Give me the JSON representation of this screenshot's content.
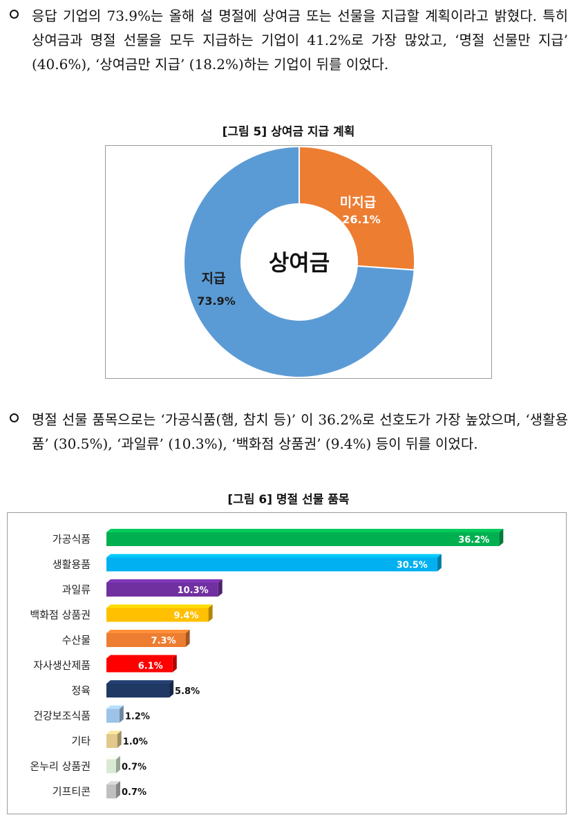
{
  "paragraphs": [
    "응답 기업의 73.9%는 올해 설 명절에 상여금 또는 선물을 지급할 계획이라고 밝혔다. 특히 상여금과 명절 선물을 모두 지급하는 기업이 41.2%로 가장 많았고, ‘명절 선물만 지급’ (40.6%), ‘상여금만 지급’ (18.2%)하는 기업이 뒤를 이었다.",
    "명절 선물 품목으로는 ‘가공식품(햄, 참치 등)’ 이 36.2%로 선호도가 가장 높았으며, ‘생활용품’ (30.5%), ‘과일류’ (10.3%), ‘백화점 상품권’ (9.4%) 등이 뒤를 이었다."
  ],
  "figures": {
    "fig5_title": "[그림 5] 상여금 지급 계획",
    "fig6_title": "[그림 6] 명절 선물 품목"
  },
  "chart_data": [
    {
      "type": "pie",
      "title": "[그림 5] 상여금 지급 계획",
      "center_label": "상여금",
      "slices": [
        {
          "name": "미지급",
          "value": 26.1,
          "label": "26.1%",
          "color": "#ED7D31"
        },
        {
          "name": "지급",
          "value": 73.9,
          "label": "73.9%",
          "color": "#5B9BD5"
        }
      ]
    },
    {
      "type": "bar",
      "title": "[그림 6] 명절 선물 품목",
      "orientation": "horizontal",
      "categories": [
        "가공식품",
        "생활용품",
        "과일류",
        "백화점 상품권",
        "수산물",
        "자사생산제품",
        "정육",
        "건강보조식품",
        "기타",
        "온누리 상품권",
        "기프티콘"
      ],
      "values": [
        36.2,
        30.5,
        10.3,
        9.4,
        7.3,
        6.1,
        5.8,
        1.2,
        1.0,
        0.7,
        0.7
      ],
      "labels": [
        "36.2%",
        "30.5%",
        "10.3%",
        "9.4%",
        "7.3%",
        "6.1%",
        "5.8%",
        "1.2%",
        "1.0%",
        "0.7%",
        "0.7%"
      ],
      "colors": [
        "#00B050",
        "#00B0F0",
        "#7030A0",
        "#FFC000",
        "#ED7D31",
        "#FF0000",
        "#1F3864",
        "#9DC3E6",
        "#E2C98B",
        "#D9EAD3",
        "#BFBFBF"
      ],
      "label_inside": [
        true,
        true,
        true,
        true,
        true,
        true,
        false,
        false,
        false,
        false,
        false
      ]
    }
  ]
}
